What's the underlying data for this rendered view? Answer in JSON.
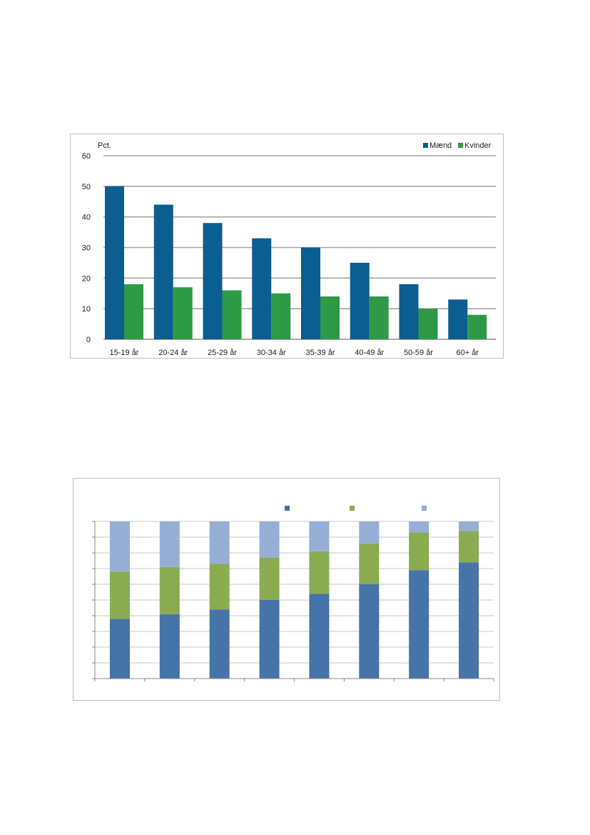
{
  "chart_data": [
    {
      "type": "bar",
      "title": "",
      "ylabel": "Pct.",
      "ylim": [
        0,
        60
      ],
      "yticks": [
        0,
        10,
        20,
        30,
        40,
        50,
        60
      ],
      "categories": [
        "15-19 år",
        "20-24 år",
        "25-29 år",
        "30-34 år",
        "35-39 år",
        "40-49 år",
        "50-59 år",
        "60+ år"
      ],
      "series": [
        {
          "name": "Mænd",
          "values": [
            50,
            44,
            38,
            33,
            30,
            25,
            18,
            13
          ],
          "color": "#0b5e8f"
        },
        {
          "name": "Kvinder",
          "values": [
            18,
            17,
            16,
            15,
            14,
            14,
            10,
            8
          ],
          "color": "#2e9a47"
        }
      ],
      "grid": true,
      "legend": "top-right"
    },
    {
      "type": "bar",
      "stacked": true,
      "title": "",
      "ylim": [
        0,
        100
      ],
      "gridlines": 10,
      "categories_count": 8,
      "series": [
        {
          "values": [
            38,
            41,
            44,
            50,
            54,
            60,
            69,
            74
          ],
          "color": "#4673a8"
        },
        {
          "values": [
            30,
            30,
            29,
            27,
            27,
            26,
            24,
            20
          ],
          "color": "#8aab50"
        },
        {
          "values": [
            32,
            29,
            27,
            23,
            19,
            14,
            7,
            6
          ],
          "color": "#97aed4"
        }
      ],
      "grid": true,
      "legend": "top"
    }
  ]
}
